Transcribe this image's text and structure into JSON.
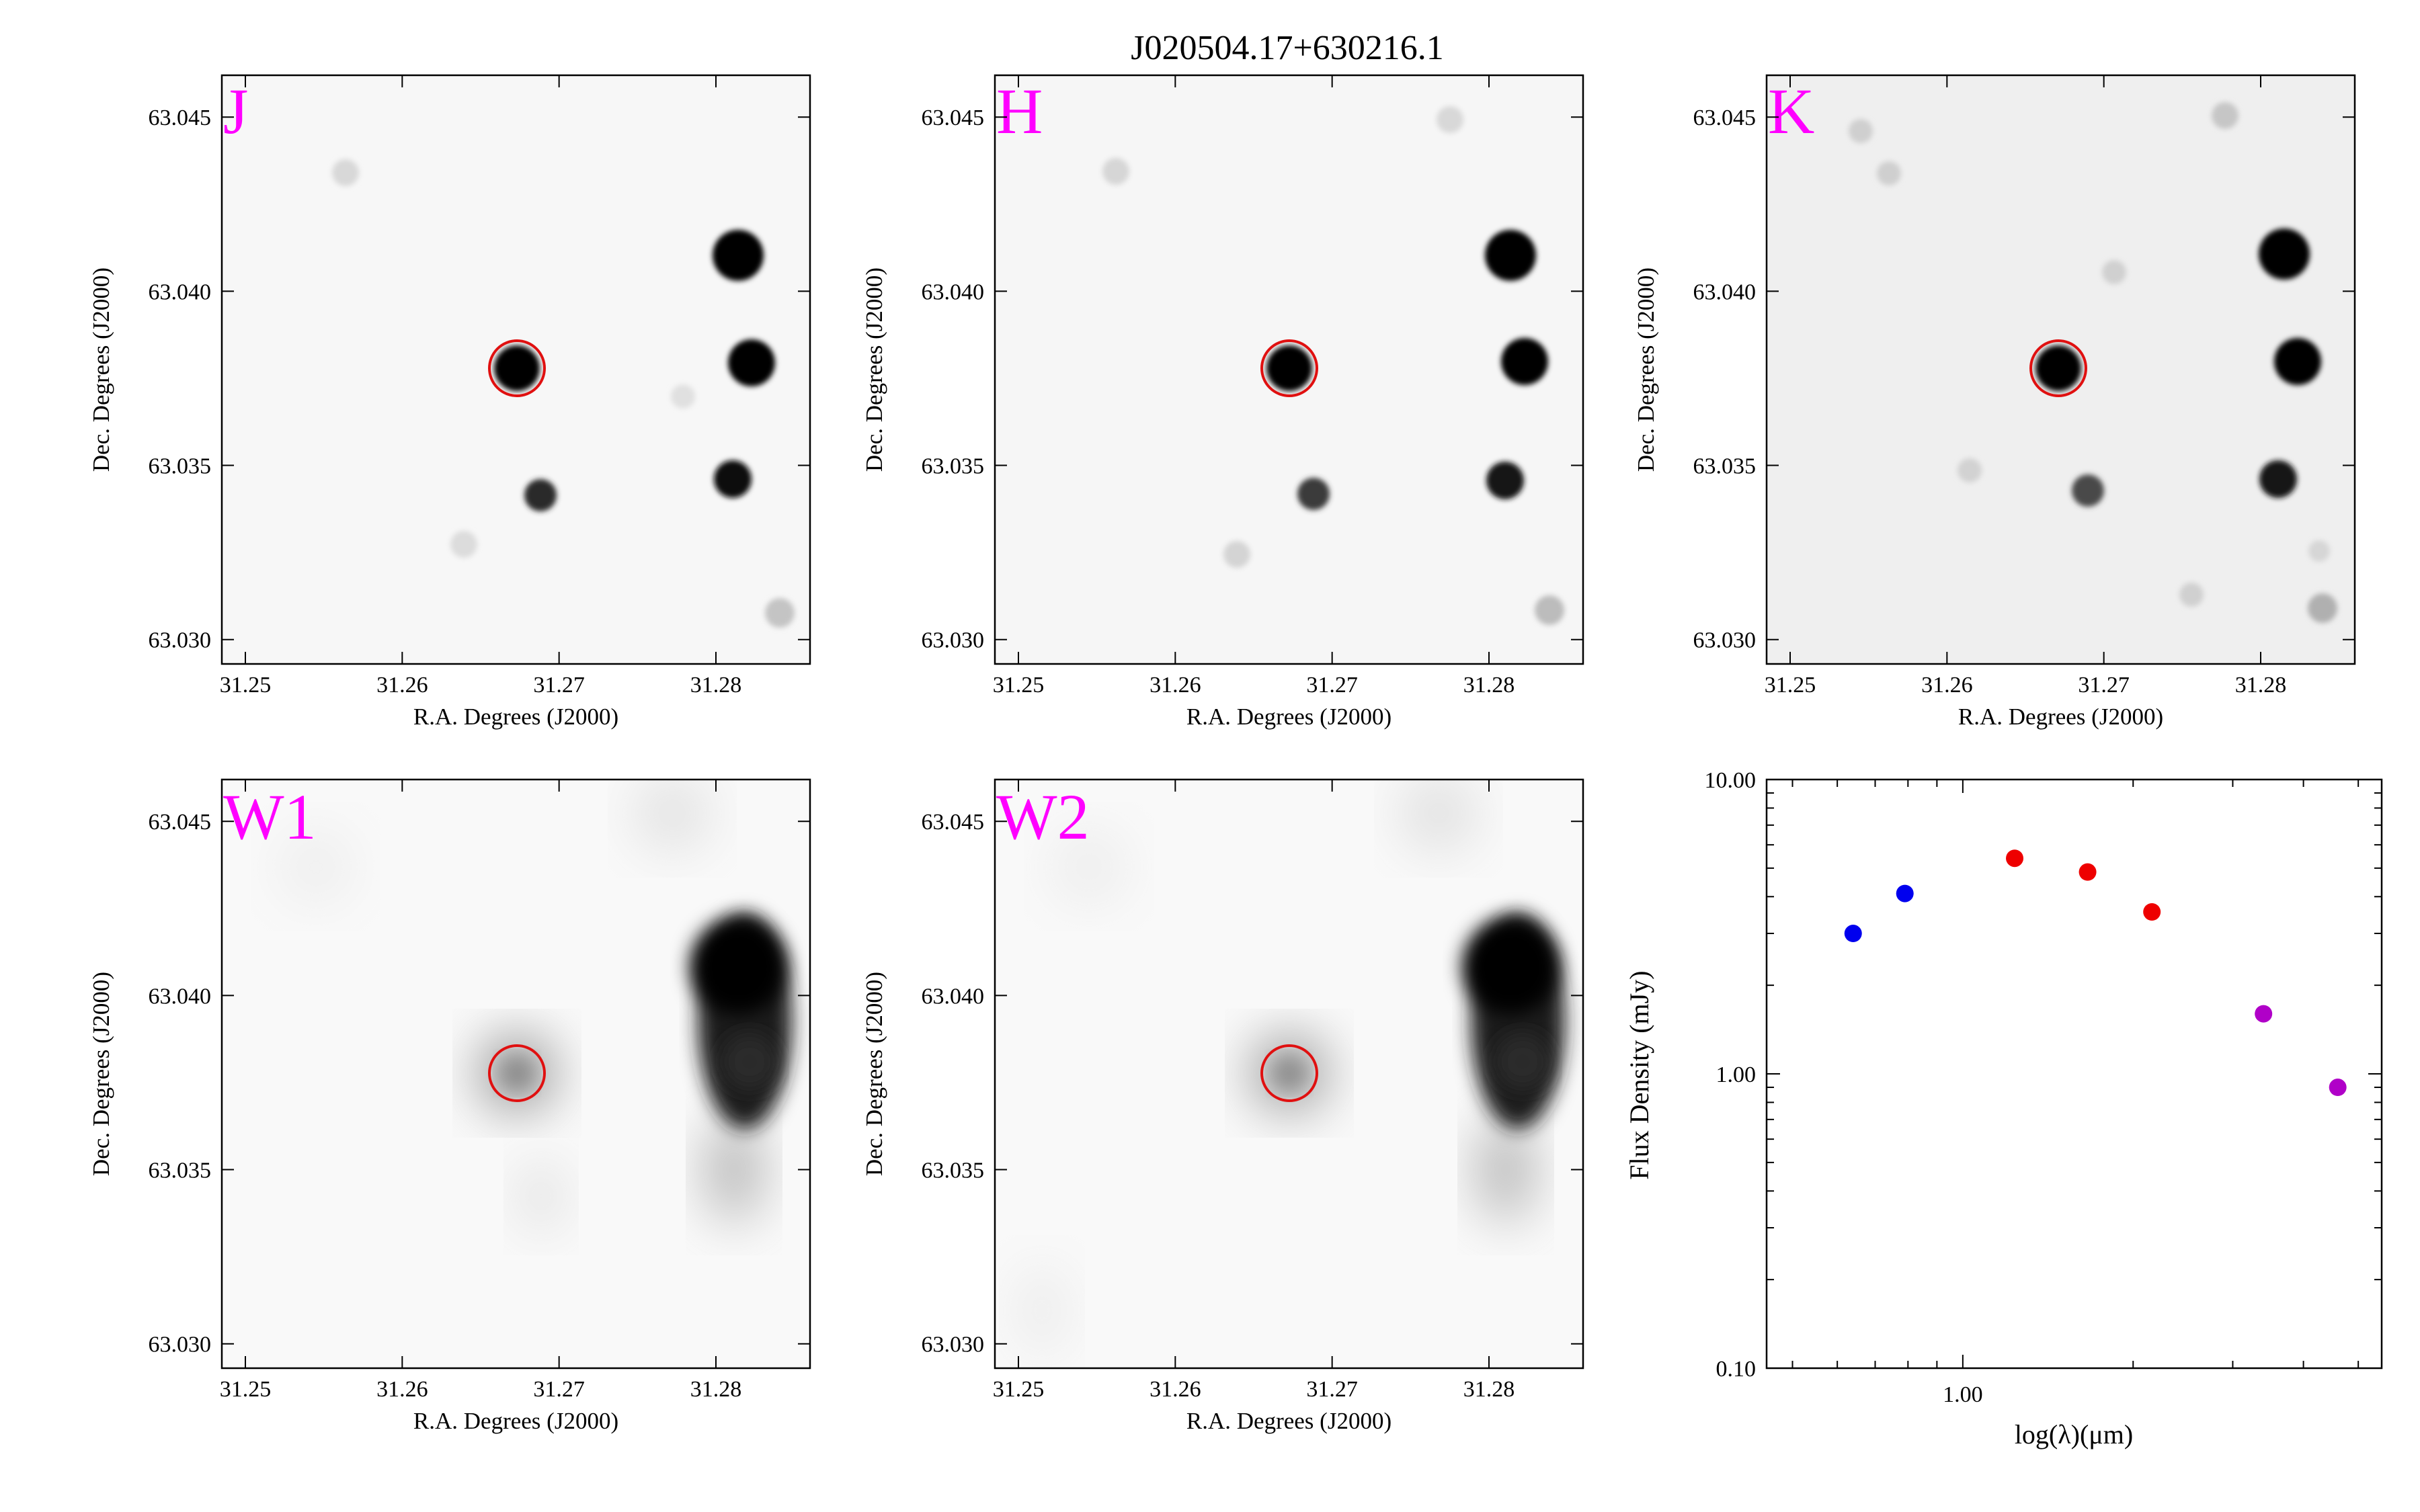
{
  "figure": {
    "title": "J020504.17+630216.1",
    "image_axis": {
      "xlabel": "R.A. Degrees (J2000)",
      "ylabel": "Dec. Degrees (J2000)",
      "xticks": [
        "31.25",
        "31.26",
        "31.27",
        "31.28"
      ],
      "yticks": [
        "63.045",
        "63.040",
        "63.035",
        "63.030"
      ]
    },
    "target_marker_color": "#e01010",
    "panel_label_color": "#ff00ff"
  },
  "panels": [
    {
      "label": "J",
      "style": "2mass"
    },
    {
      "label": "H",
      "style": "2mass"
    },
    {
      "label": "K",
      "style": "2mass"
    },
    {
      "label": "W1",
      "style": "wise"
    },
    {
      "label": "W2",
      "style": "wise"
    }
  ],
  "chart_data": [
    {
      "type": "heatmap",
      "panel": "J",
      "xlim": [
        31.2485,
        31.286
      ],
      "ylim": [
        63.0293,
        63.0462
      ],
      "target": {
        "ra": 31.2674,
        "dec": 63.0378
      },
      "sources": [
        {
          "ra": 31.2674,
          "dec": 63.0378
        },
        {
          "ra": 31.2813,
          "dec": 63.0411
        },
        {
          "ra": 31.2824,
          "dec": 63.038
        },
        {
          "ra": 31.2812,
          "dec": 63.0346
        },
        {
          "ra": 31.269,
          "dec": 63.0341
        },
        {
          "ra": 31.2843,
          "dec": 63.0308
        }
      ]
    },
    {
      "type": "heatmap",
      "panel": "H",
      "xlim": [
        31.2485,
        31.286
      ],
      "ylim": [
        63.0293,
        63.0462
      ],
      "target": {
        "ra": 31.2674,
        "dec": 63.0378
      }
    },
    {
      "type": "heatmap",
      "panel": "K",
      "xlim": [
        31.2485,
        31.286
      ],
      "ylim": [
        63.0293,
        63.0462
      ],
      "target": {
        "ra": 31.2674,
        "dec": 63.0378
      }
    },
    {
      "type": "heatmap",
      "panel": "W1",
      "xlim": [
        31.2485,
        31.286
      ],
      "ylim": [
        63.0293,
        63.0462
      ],
      "target": {
        "ra": 31.2674,
        "dec": 63.0378
      }
    },
    {
      "type": "heatmap",
      "panel": "W2",
      "xlim": [
        31.2485,
        31.286
      ],
      "ylim": [
        63.0293,
        63.0462
      ],
      "target": {
        "ra": 31.2674,
        "dec": 63.0378
      }
    },
    {
      "type": "scatter",
      "xlabel": "log(λ)(μm)",
      "ylabel": "Flux Density (mJy)",
      "xscale": "log",
      "yscale": "log",
      "xlim": [
        0.45,
        5.5
      ],
      "ylim": [
        0.1,
        10.0
      ],
      "ytick_labels": [
        "10.00",
        "1.00",
        "0.10"
      ],
      "xtick_labels": [
        "1.00"
      ],
      "grid": false,
      "series": [
        {
          "color": "#0000ee",
          "x": [
            0.64,
            0.79
          ],
          "y": [
            3.0,
            4.1
          ]
        },
        {
          "color": "#ee0000",
          "x": [
            1.235,
            1.662,
            2.159
          ],
          "y": [
            5.4,
            4.85,
            3.55
          ]
        },
        {
          "color": "#b000c8",
          "x": [
            3.4,
            4.6
          ],
          "y": [
            1.6,
            0.9
          ]
        }
      ]
    }
  ]
}
